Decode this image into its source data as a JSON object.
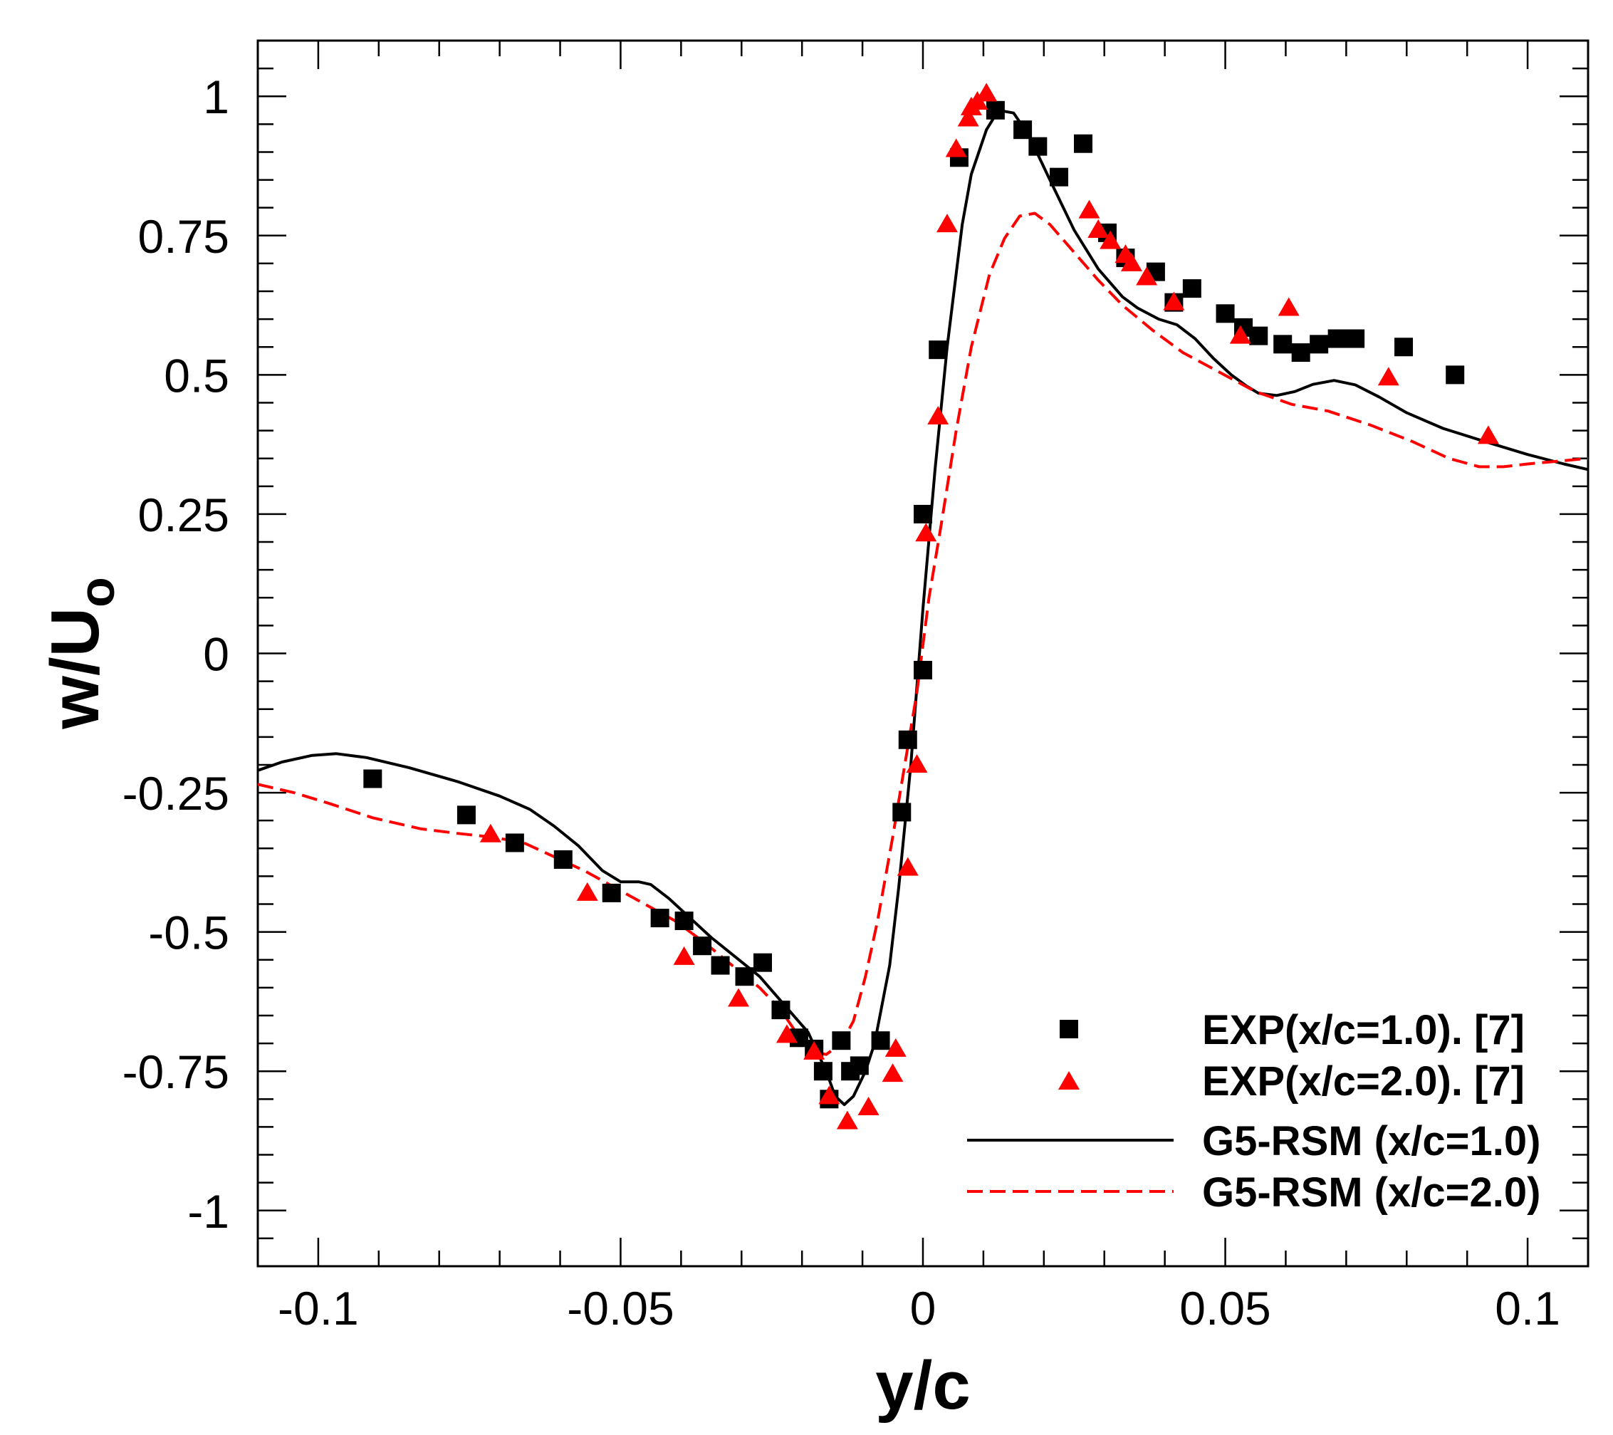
{
  "chart_data": {
    "type": "scatter",
    "xlabel": "y/c",
    "ylabel": "w/U",
    "ylabel_subscript": "o",
    "xlim": [
      -0.11,
      0.11
    ],
    "ylim": [
      -1.1,
      1.1
    ],
    "x_ticks": [
      -0.1,
      -0.05,
      0,
      0.05,
      0.1
    ],
    "x_tick_labels": [
      "-0.1",
      "-0.05",
      "0",
      "0.05",
      "0.1"
    ],
    "y_ticks": [
      -1,
      -0.75,
      -0.5,
      -0.25,
      0,
      0.25,
      0.5,
      0.75,
      1
    ],
    "y_tick_labels": [
      "-1",
      "-0.75",
      "-0.5",
      "-0.25",
      "0",
      "0.25",
      "0.5",
      "0.75",
      "1"
    ],
    "colors": {
      "exp1": "#000000",
      "exp2": "#ff0000",
      "rsm1": "#000000",
      "rsm2": "#ff0000"
    },
    "legend_position": "bottom-right",
    "series": [
      {
        "name": "EXP(x/c=1.0). [7]",
        "kind": "square-markers",
        "color": "#000000",
        "points": [
          [
            -0.091,
            -0.225
          ],
          [
            -0.0755,
            -0.29
          ],
          [
            -0.0675,
            -0.34
          ],
          [
            -0.0595,
            -0.37
          ],
          [
            -0.0515,
            -0.43
          ],
          [
            -0.0435,
            -0.475
          ],
          [
            -0.0395,
            -0.48
          ],
          [
            -0.0365,
            -0.525
          ],
          [
            -0.0335,
            -0.56
          ],
          [
            -0.0295,
            -0.58
          ],
          [
            -0.0265,
            -0.555
          ],
          [
            -0.0235,
            -0.64
          ],
          [
            -0.0205,
            -0.69
          ],
          [
            -0.018,
            -0.71
          ],
          [
            -0.0165,
            -0.75
          ],
          [
            -0.0155,
            -0.8
          ],
          [
            -0.0135,
            -0.695
          ],
          [
            -0.012,
            -0.75
          ],
          [
            -0.0105,
            -0.74
          ],
          [
            -0.007,
            -0.695
          ],
          [
            -0.0035,
            -0.285
          ],
          [
            -0.0025,
            -0.155
          ],
          [
            0.0,
            -0.03
          ],
          [
            0.0,
            0.25
          ],
          [
            0.0025,
            0.545
          ],
          [
            0.006,
            0.89
          ],
          [
            0.012,
            0.975
          ],
          [
            0.0165,
            0.94
          ],
          [
            0.019,
            0.91
          ],
          [
            0.0225,
            0.855
          ],
          [
            0.0265,
            0.915
          ],
          [
            0.0305,
            0.755
          ],
          [
            0.0335,
            0.71
          ],
          [
            0.0385,
            0.685
          ],
          [
            0.0415,
            0.63
          ],
          [
            0.0445,
            0.655
          ],
          [
            0.05,
            0.61
          ],
          [
            0.053,
            0.585
          ],
          [
            0.0555,
            0.57
          ],
          [
            0.0595,
            0.555
          ],
          [
            0.0625,
            0.54
          ],
          [
            0.0655,
            0.555
          ],
          [
            0.0685,
            0.565
          ],
          [
            0.0715,
            0.565
          ],
          [
            0.0795,
            0.55
          ],
          [
            0.088,
            0.5
          ]
        ]
      },
      {
        "name": "EXP(x/c=2.0). [7]",
        "kind": "triangle-markers",
        "color": "#ff0000",
        "points": [
          [
            -0.0715,
            -0.325
          ],
          [
            -0.0555,
            -0.43
          ],
          [
            -0.0395,
            -0.545
          ],
          [
            -0.0305,
            -0.62
          ],
          [
            -0.0225,
            -0.685
          ],
          [
            -0.018,
            -0.715
          ],
          [
            -0.0155,
            -0.795
          ],
          [
            -0.0125,
            -0.84
          ],
          [
            -0.009,
            -0.815
          ],
          [
            -0.005,
            -0.755
          ],
          [
            -0.0045,
            -0.71
          ],
          [
            -0.0025,
            -0.385
          ],
          [
            -0.001,
            -0.2
          ],
          [
            0.0005,
            0.215
          ],
          [
            0.0025,
            0.425
          ],
          [
            0.004,
            0.77
          ],
          [
            0.0055,
            0.905
          ],
          [
            0.0075,
            0.96
          ],
          [
            0.008,
            0.98
          ],
          [
            0.009,
            0.99
          ],
          [
            0.0105,
            1.005
          ],
          [
            0.0275,
            0.795
          ],
          [
            0.029,
            0.76
          ],
          [
            0.031,
            0.74
          ],
          [
            0.0335,
            0.715
          ],
          [
            0.0345,
            0.7
          ],
          [
            0.037,
            0.675
          ],
          [
            0.0415,
            0.63
          ],
          [
            0.0525,
            0.57
          ],
          [
            0.0605,
            0.62
          ],
          [
            0.077,
            0.495
          ],
          [
            0.0935,
            0.39
          ]
        ]
      },
      {
        "name": "G5-RSM (x/c=1.0)",
        "kind": "solid-line",
        "color": "#000000",
        "points": [
          [
            -0.11,
            -0.21
          ],
          [
            -0.106,
            -0.195
          ],
          [
            -0.101,
            -0.183
          ],
          [
            -0.097,
            -0.18
          ],
          [
            -0.092,
            -0.187
          ],
          [
            -0.085,
            -0.205
          ],
          [
            -0.077,
            -0.23
          ],
          [
            -0.07,
            -0.256
          ],
          [
            -0.065,
            -0.28
          ],
          [
            -0.061,
            -0.31
          ],
          [
            -0.057,
            -0.345
          ],
          [
            -0.053,
            -0.39
          ],
          [
            -0.05,
            -0.41
          ],
          [
            -0.047,
            -0.41
          ],
          [
            -0.045,
            -0.415
          ],
          [
            -0.042,
            -0.44
          ],
          [
            -0.039,
            -0.47
          ],
          [
            -0.035,
            -0.51
          ],
          [
            -0.031,
            -0.545
          ],
          [
            -0.027,
            -0.58
          ],
          [
            -0.023,
            -0.63
          ],
          [
            -0.019,
            -0.68
          ],
          [
            -0.016,
            -0.75
          ],
          [
            -0.0145,
            -0.795
          ],
          [
            -0.013,
            -0.81
          ],
          [
            -0.0115,
            -0.795
          ],
          [
            -0.0095,
            -0.75
          ],
          [
            -0.008,
            -0.7
          ],
          [
            -0.0055,
            -0.56
          ],
          [
            -0.004,
            -0.42
          ],
          [
            -0.002,
            -0.2
          ],
          [
            0.0,
            0.08
          ],
          [
            0.002,
            0.33
          ],
          [
            0.004,
            0.55
          ],
          [
            0.0065,
            0.77
          ],
          [
            0.008,
            0.86
          ],
          [
            0.0105,
            0.94
          ],
          [
            0.0125,
            0.975
          ],
          [
            0.015,
            0.97
          ],
          [
            0.0175,
            0.93
          ],
          [
            0.021,
            0.85
          ],
          [
            0.025,
            0.76
          ],
          [
            0.029,
            0.69
          ],
          [
            0.033,
            0.64
          ],
          [
            0.0355,
            0.62
          ],
          [
            0.039,
            0.6
          ],
          [
            0.042,
            0.59
          ],
          [
            0.045,
            0.565
          ],
          [
            0.048,
            0.53
          ],
          [
            0.051,
            0.5
          ],
          [
            0.0535,
            0.48
          ],
          [
            0.0555,
            0.467
          ],
          [
            0.0585,
            0.463
          ],
          [
            0.0615,
            0.47
          ],
          [
            0.0645,
            0.483
          ],
          [
            0.068,
            0.49
          ],
          [
            0.0715,
            0.482
          ],
          [
            0.0755,
            0.46
          ],
          [
            0.08,
            0.432
          ],
          [
            0.086,
            0.404
          ],
          [
            0.093,
            0.38
          ],
          [
            0.1,
            0.357
          ],
          [
            0.106,
            0.34
          ],
          [
            0.11,
            0.33
          ]
        ]
      },
      {
        "name": "G5-RSM (x/c=2.0)",
        "kind": "dashed-line",
        "color": "#ff0000",
        "points": [
          [
            -0.11,
            -0.235
          ],
          [
            -0.104,
            -0.25
          ],
          [
            -0.098,
            -0.27
          ],
          [
            -0.091,
            -0.295
          ],
          [
            -0.083,
            -0.315
          ],
          [
            -0.077,
            -0.323
          ],
          [
            -0.071,
            -0.33
          ],
          [
            -0.066,
            -0.34
          ],
          [
            -0.061,
            -0.365
          ],
          [
            -0.056,
            -0.39
          ],
          [
            -0.051,
            -0.42
          ],
          [
            -0.046,
            -0.45
          ],
          [
            -0.041,
            -0.48
          ],
          [
            -0.036,
            -0.52
          ],
          [
            -0.031,
            -0.565
          ],
          [
            -0.027,
            -0.6
          ],
          [
            -0.0235,
            -0.64
          ],
          [
            -0.021,
            -0.68
          ],
          [
            -0.018,
            -0.715
          ],
          [
            -0.016,
            -0.72
          ],
          [
            -0.0135,
            -0.7
          ],
          [
            -0.0115,
            -0.66
          ],
          [
            -0.0095,
            -0.58
          ],
          [
            -0.0075,
            -0.48
          ],
          [
            -0.005,
            -0.33
          ],
          [
            -0.003,
            -0.2
          ],
          [
            -0.001,
            -0.07
          ],
          [
            0.001,
            0.1
          ],
          [
            0.003,
            0.23
          ],
          [
            0.0055,
            0.4
          ],
          [
            0.008,
            0.55
          ],
          [
            0.011,
            0.68
          ],
          [
            0.0135,
            0.745
          ],
          [
            0.016,
            0.785
          ],
          [
            0.0185,
            0.79
          ],
          [
            0.021,
            0.77
          ],
          [
            0.025,
            0.72
          ],
          [
            0.029,
            0.67
          ],
          [
            0.033,
            0.625
          ],
          [
            0.038,
            0.58
          ],
          [
            0.043,
            0.54
          ],
          [
            0.049,
            0.505
          ],
          [
            0.055,
            0.47
          ],
          [
            0.061,
            0.447
          ],
          [
            0.067,
            0.435
          ],
          [
            0.074,
            0.41
          ],
          [
            0.081,
            0.38
          ],
          [
            0.087,
            0.35
          ],
          [
            0.092,
            0.335
          ],
          [
            0.096,
            0.335
          ],
          [
            0.1,
            0.34
          ],
          [
            0.105,
            0.345
          ],
          [
            0.11,
            0.35
          ]
        ]
      }
    ]
  }
}
